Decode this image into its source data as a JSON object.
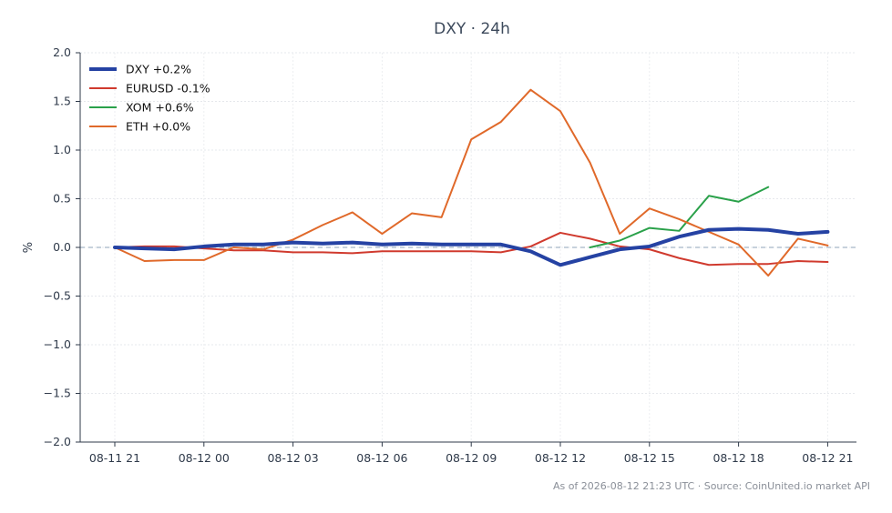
{
  "chart_data": {
    "type": "line",
    "title": "DXY · 24h",
    "ylabel": "%",
    "xlabel": "",
    "x_ticks": [
      "08-11 21",
      "08-12 00",
      "08-12 03",
      "08-12 06",
      "08-12 09",
      "08-12 12",
      "08-12 15",
      "08-12 18",
      "08-12 21"
    ],
    "ylim": [
      -2.0,
      2.0
    ],
    "y_ticks": [
      "2.0",
      "1.5",
      "1.0",
      "0.5",
      "0.0",
      "−0.5",
      "−1.0",
      "−1.5",
      "−2.0"
    ],
    "grid": true,
    "zero_line": true,
    "legend_position": "top-left",
    "series": [
      {
        "name": "DXY +0.2%",
        "color": "#2542a3",
        "x_hours": [
          0,
          1,
          2,
          3,
          4,
          5,
          6,
          7,
          8,
          9,
          10,
          11,
          12,
          13,
          14,
          15,
          16,
          17,
          18,
          19,
          20,
          21,
          22,
          23,
          24
        ],
        "values": [
          0.0,
          -0.01,
          -0.02,
          0.01,
          0.03,
          0.03,
          0.05,
          0.04,
          0.05,
          0.03,
          0.04,
          0.03,
          0.03,
          0.03,
          -0.04,
          -0.18,
          -0.1,
          -0.02,
          0.01,
          0.11,
          0.18,
          0.19,
          0.18,
          0.14,
          0.16
        ]
      },
      {
        "name": "EURUSD -0.1%",
        "color": "#d03a2e",
        "x_hours": [
          0,
          1,
          2,
          3,
          4,
          5,
          6,
          7,
          8,
          9,
          10,
          11,
          12,
          13,
          14,
          15,
          16,
          17,
          18,
          19,
          20,
          21,
          22,
          23,
          24
        ],
        "values": [
          0.0,
          0.01,
          0.01,
          -0.01,
          -0.03,
          -0.03,
          -0.05,
          -0.05,
          -0.06,
          -0.04,
          -0.04,
          -0.04,
          -0.04,
          -0.05,
          0.01,
          0.15,
          0.09,
          0.01,
          -0.02,
          -0.11,
          -0.18,
          -0.17,
          -0.17,
          -0.14,
          -0.15
        ]
      },
      {
        "name": "XOM +0.6%",
        "color": "#2aa14a",
        "x_hours": [
          16,
          17,
          18,
          19,
          20,
          21,
          22
        ],
        "values": [
          0.0,
          0.07,
          0.2,
          0.17,
          0.53,
          0.47,
          0.62
        ]
      },
      {
        "name": "ETH +0.0%",
        "color": "#e0692a",
        "x_hours": [
          0,
          1,
          2,
          3,
          4,
          5,
          6,
          7,
          8,
          9,
          10,
          11,
          12,
          13,
          14,
          15,
          16,
          17,
          18,
          19,
          20,
          21,
          22,
          23,
          24
        ],
        "values": [
          0.0,
          -0.14,
          -0.13,
          -0.13,
          0.0,
          -0.02,
          0.08,
          0.23,
          0.36,
          0.14,
          0.35,
          0.31,
          1.11,
          1.29,
          1.62,
          1.4,
          0.87,
          0.14,
          0.4,
          0.29,
          0.16,
          0.03,
          -0.29,
          0.09,
          0.02
        ]
      }
    ]
  },
  "footer": "As of 2026-08-12 21:23 UTC · Source: CoinUnited.io market API"
}
